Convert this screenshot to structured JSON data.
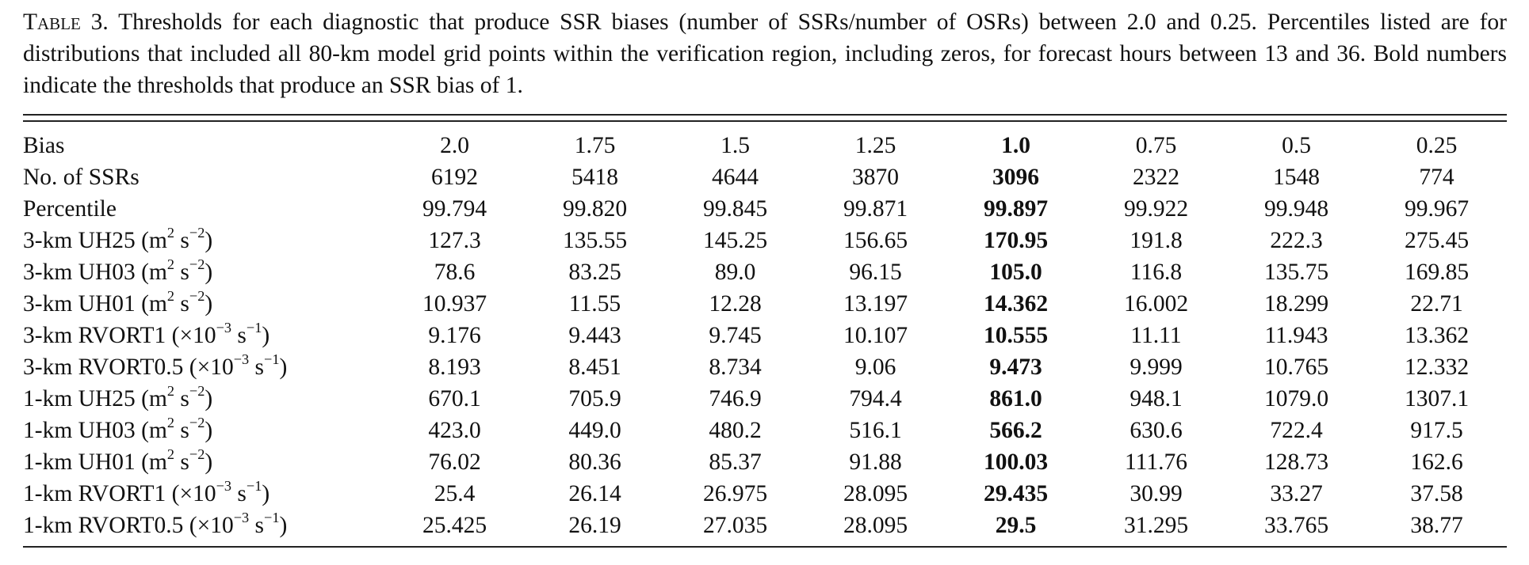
{
  "caption": {
    "label": "Table 3.",
    "text": "Thresholds for each diagnostic that produce SSR biases (number of SSRs/number of OSRs) between 2.0 and 0.25. Percentiles listed are for distributions that included all 80-km model grid points within the verification region, including zeros, for forecast hours between 13 and 36. Bold numbers indicate the thresholds that produce an SSR bias of 1."
  },
  "table": {
    "bold_column_index": 4,
    "rows": [
      {
        "label_parts": [
          "Bias"
        ],
        "values": [
          "2.0",
          "1.75",
          "1.5",
          "1.25",
          "1.0",
          "0.75",
          "0.5",
          "0.25"
        ]
      },
      {
        "label_parts": [
          "No. of SSRs"
        ],
        "values": [
          "6192",
          "5418",
          "4644",
          "3870",
          "3096",
          "2322",
          "1548",
          "774"
        ]
      },
      {
        "label_parts": [
          "Percentile"
        ],
        "values": [
          "99.794",
          "99.820",
          "99.845",
          "99.871",
          "99.897",
          "99.922",
          "99.948",
          "99.967"
        ]
      },
      {
        "label_parts": [
          "3-km UH25 (m",
          "2",
          " s",
          "−2",
          ")"
        ],
        "values": [
          "127.3",
          "135.55",
          "145.25",
          "156.65",
          "170.95",
          "191.8",
          "222.3",
          "275.45"
        ]
      },
      {
        "label_parts": [
          "3-km UH03 (m",
          "2",
          " s",
          "−2",
          ")"
        ],
        "values": [
          "78.6",
          "83.25",
          "89.0",
          "96.15",
          "105.0",
          "116.8",
          "135.75",
          "169.85"
        ]
      },
      {
        "label_parts": [
          "3-km UH01 (m",
          "2",
          " s",
          "−2",
          ")"
        ],
        "values": [
          "10.937",
          "11.55",
          "12.28",
          "13.197",
          "14.362",
          "16.002",
          "18.299",
          "22.71"
        ]
      },
      {
        "label_parts": [
          "3-km RVORT1 (×10",
          "−3",
          " s",
          "−1",
          ")"
        ],
        "values": [
          "9.176",
          "9.443",
          "9.745",
          "10.107",
          "10.555",
          "11.11",
          "11.943",
          "13.362"
        ]
      },
      {
        "label_parts": [
          "3-km RVORT0.5 (×10",
          "−3",
          " s",
          "−1",
          ")"
        ],
        "values": [
          "8.193",
          "8.451",
          "8.734",
          "9.06",
          "9.473",
          "9.999",
          "10.765",
          "12.332"
        ]
      },
      {
        "label_parts": [
          "1-km UH25 (m",
          "2",
          " s",
          "−2",
          ")"
        ],
        "values": [
          "670.1",
          "705.9",
          "746.9",
          "794.4",
          "861.0",
          "948.1",
          "1079.0",
          "1307.1"
        ]
      },
      {
        "label_parts": [
          "1-km UH03 (m",
          "2",
          " s",
          "−2",
          ")"
        ],
        "values": [
          "423.0",
          "449.0",
          "480.2",
          "516.1",
          "566.2",
          "630.6",
          "722.4",
          "917.5"
        ]
      },
      {
        "label_parts": [
          "1-km UH01 (m",
          "2",
          " s",
          "−2",
          ")"
        ],
        "values": [
          "76.02",
          "80.36",
          "85.37",
          "91.88",
          "100.03",
          "111.76",
          "128.73",
          "162.6"
        ]
      },
      {
        "label_parts": [
          "1-km RVORT1 (×10",
          "−3",
          " s",
          "−1",
          ")"
        ],
        "values": [
          "25.4",
          "26.14",
          "26.975",
          "28.095",
          "29.435",
          "30.99",
          "33.27",
          "37.58"
        ]
      },
      {
        "label_parts": [
          "1-km RVORT0.5 (×10",
          "−3",
          " s",
          "−1",
          ")"
        ],
        "values": [
          "25.425",
          "26.19",
          "27.035",
          "28.095",
          "29.5",
          "31.295",
          "33.765",
          "38.77"
        ]
      }
    ]
  }
}
